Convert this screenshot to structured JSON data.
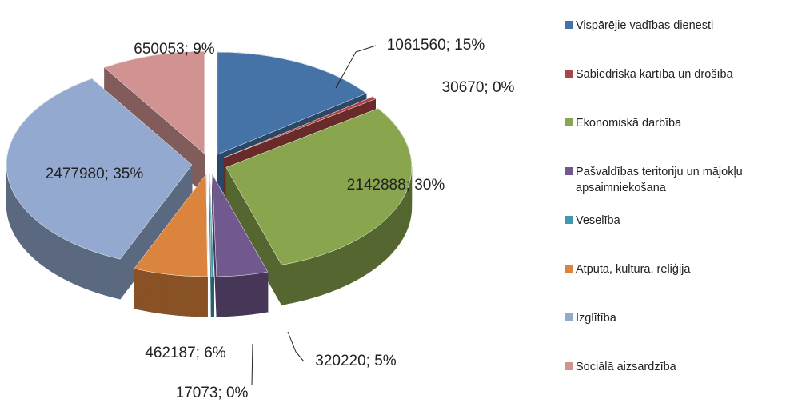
{
  "chart_data": {
    "type": "pie3d",
    "categories": [
      "Vispārējie vadības dienesti",
      "Sabiedriskā kārtība un drošība",
      "Ekonomiskā darbība",
      "Pašvaldības teritoriju un mājokļu apsaimniekošana",
      "Veselība",
      "Atpūta, kultūra, reliģija",
      "Izglītība",
      "Sociālā aizsardzība"
    ],
    "values": [
      1061560,
      30670,
      2142888,
      320220,
      17073,
      462187,
      2477980,
      650053
    ],
    "value_labels": [
      "1061560; 15%",
      "30670; 0%",
      "2142888; 30%",
      "320220; 5%",
      "17073; 0%",
      "462187; 6%",
      "2477980; 35%",
      "650053; 9%"
    ],
    "colors": [
      "#4572a7",
      "#aa4643",
      "#89a54e",
      "#71588f",
      "#4198af",
      "#db843d",
      "#93a9cf",
      "#d19392"
    ],
    "legend": "right"
  }
}
